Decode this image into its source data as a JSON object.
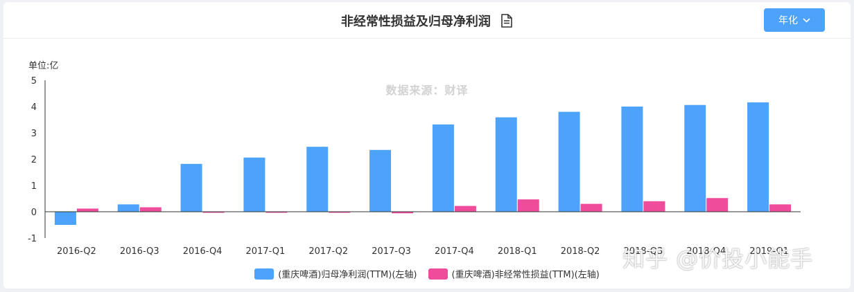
{
  "header": {
    "title": "非经常性损益及归母净利润",
    "period_button": "年化",
    "doc_icon": "document-icon",
    "dropdown_icon": "chevron-down-icon"
  },
  "unit_label": "单位:亿",
  "source_note": "数据来源：财译",
  "watermark": "知乎 @价投小能手",
  "chart_data": {
    "type": "bar",
    "categories": [
      "2016-Q2",
      "2016-Q3",
      "2016-Q4",
      "2017-Q1",
      "2017-Q2",
      "2017-Q3",
      "2017-Q4",
      "2018-Q1",
      "2018-Q2",
      "2018-Q3",
      "2018-Q4",
      "2019-Q1"
    ],
    "series": [
      {
        "name": "(重庆啤酒)归母净利润(TTM)(左轴)",
        "color": "#4ca3f9",
        "values": [
          -0.5,
          0.28,
          1.82,
          2.06,
          2.47,
          2.35,
          3.32,
          3.59,
          3.8,
          4.0,
          4.06,
          4.16
        ]
      },
      {
        "name": "(重庆啤酒)非经常性损益(TTM)(左轴)",
        "color": "#ef4d9b",
        "values": [
          0.12,
          0.17,
          -0.03,
          -0.02,
          -0.01,
          -0.06,
          0.22,
          0.47,
          0.3,
          0.4,
          0.52,
          0.28
        ]
      }
    ],
    "ylim": [
      -1,
      5
    ],
    "yticks": [
      "5",
      "4",
      "3",
      "2",
      "1",
      "0",
      "-1"
    ],
    "legend_position": "bottom"
  }
}
